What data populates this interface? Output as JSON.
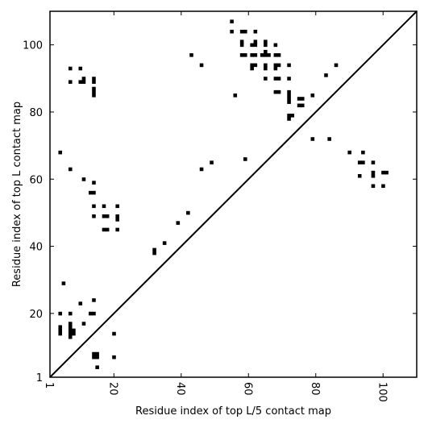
{
  "chart_data": {
    "type": "scatter",
    "title": "",
    "xlabel": "Residue index of top L/5 contact map",
    "ylabel": "Residue index of top L contact map",
    "xlim": [
      1,
      110
    ],
    "ylim": [
      1,
      110
    ],
    "grid": false,
    "xticks": [
      1,
      20,
      40,
      60,
      80,
      100
    ],
    "yticks": [
      1,
      20,
      40,
      60,
      80,
      100
    ],
    "xtick_labels": [
      "1",
      "20",
      "40",
      "60",
      "80",
      "100"
    ],
    "ytick_labels": [
      "1",
      "20",
      "40",
      "60",
      "80",
      "100"
    ],
    "xtick_rotation": -90,
    "diagonal_line": true,
    "series": [
      {
        "points": [
          [
            4,
            68
          ],
          [
            7,
            93
          ],
          [
            7,
            89
          ],
          [
            10,
            93
          ],
          [
            10,
            89
          ],
          [
            11,
            90
          ],
          [
            11,
            89
          ],
          [
            14,
            90
          ],
          [
            14,
            89
          ],
          [
            14,
            87
          ],
          [
            14,
            86
          ],
          [
            14,
            85
          ],
          [
            43,
            97
          ],
          [
            46,
            94
          ],
          [
            55,
            107
          ],
          [
            55,
            104
          ],
          [
            56,
            85
          ],
          [
            58,
            104
          ],
          [
            58,
            101
          ],
          [
            58,
            100
          ],
          [
            58,
            97
          ],
          [
            59,
            104
          ],
          [
            59,
            97
          ],
          [
            61,
            100
          ],
          [
            61,
            97
          ],
          [
            61,
            94
          ],
          [
            61,
            93
          ],
          [
            62,
            104
          ],
          [
            62,
            101
          ],
          [
            62,
            100
          ],
          [
            62,
            97
          ],
          [
            62,
            94
          ],
          [
            64,
            97
          ],
          [
            65,
            101
          ],
          [
            65,
            100
          ],
          [
            65,
            98
          ],
          [
            65,
            97
          ],
          [
            65,
            94
          ],
          [
            65,
            93
          ],
          [
            65,
            90
          ],
          [
            66,
            97
          ],
          [
            68,
            100
          ],
          [
            68,
            97
          ],
          [
            68,
            94
          ],
          [
            68,
            93
          ],
          [
            68,
            90
          ],
          [
            68,
            86
          ],
          [
            69,
            97
          ],
          [
            69,
            94
          ],
          [
            69,
            90
          ],
          [
            69,
            86
          ],
          [
            72,
            94
          ],
          [
            72,
            90
          ],
          [
            72,
            86
          ],
          [
            72,
            85
          ],
          [
            72,
            84
          ],
          [
            72,
            83
          ],
          [
            72,
            79
          ],
          [
            72,
            78
          ],
          [
            73,
            79
          ],
          [
            75,
            84
          ],
          [
            75,
            82
          ],
          [
            76,
            84
          ],
          [
            76,
            82
          ],
          [
            79,
            85
          ],
          [
            83,
            91
          ],
          [
            86,
            94
          ],
          [
            7,
            63
          ],
          [
            11,
            60
          ],
          [
            13,
            56
          ],
          [
            14,
            56
          ],
          [
            14,
            59
          ],
          [
            14,
            52
          ],
          [
            14,
            49
          ],
          [
            17,
            52
          ],
          [
            17,
            49
          ],
          [
            18,
            49
          ],
          [
            17,
            45
          ],
          [
            18,
            45
          ],
          [
            21,
            52
          ],
          [
            21,
            49
          ],
          [
            21,
            48
          ],
          [
            21,
            45
          ],
          [
            32,
            39
          ],
          [
            32,
            38
          ],
          [
            35,
            41
          ],
          [
            39,
            47
          ],
          [
            42,
            50
          ],
          [
            46,
            63
          ],
          [
            49,
            65
          ],
          [
            59,
            66
          ],
          [
            79,
            72
          ],
          [
            84,
            72
          ],
          [
            90,
            68
          ],
          [
            93,
            65
          ],
          [
            94,
            65
          ],
          [
            94,
            68
          ],
          [
            93,
            61
          ],
          [
            97,
            65
          ],
          [
            97,
            62
          ],
          [
            97,
            61
          ],
          [
            97,
            58
          ],
          [
            100,
            62
          ],
          [
            101,
            62
          ],
          [
            100,
            58
          ],
          [
            5,
            29
          ],
          [
            4,
            20
          ],
          [
            4,
            16
          ],
          [
            4,
            15
          ],
          [
            4,
            14
          ],
          [
            7,
            20
          ],
          [
            7,
            17
          ],
          [
            7,
            16
          ],
          [
            7,
            15
          ],
          [
            7,
            14
          ],
          [
            7,
            13
          ],
          [
            8,
            15
          ],
          [
            8,
            14
          ],
          [
            10,
            23
          ],
          [
            11,
            17
          ],
          [
            13,
            20
          ],
          [
            14,
            20
          ],
          [
            14,
            24
          ],
          [
            14,
            8
          ],
          [
            14,
            7
          ],
          [
            15,
            8
          ],
          [
            15,
            7
          ],
          [
            15,
            4
          ],
          [
            20,
            14
          ],
          [
            20,
            7
          ]
        ]
      }
    ]
  }
}
